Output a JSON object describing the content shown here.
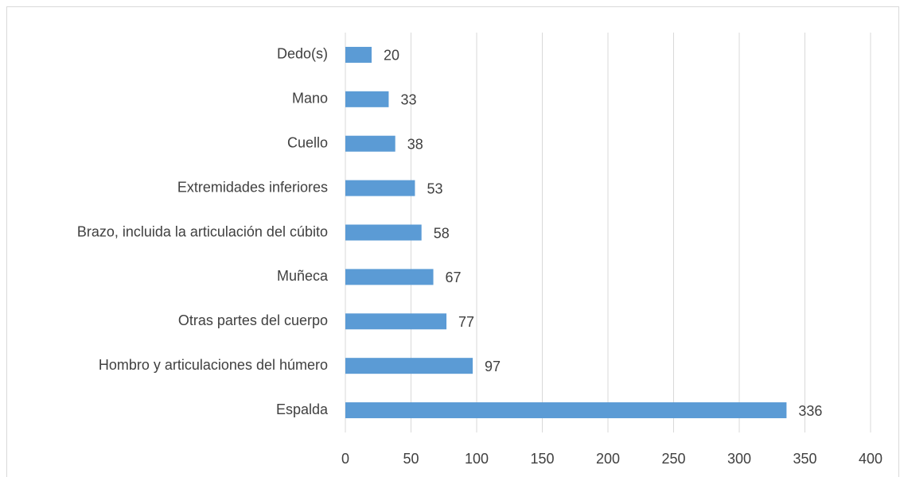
{
  "chart_data": {
    "type": "bar",
    "orientation": "horizontal",
    "categories": [
      "Dedo(s)",
      "Mano",
      "Cuello",
      "Extremidades inferiores",
      "Brazo, incluida la articulación del cúbito",
      "Muñeca",
      "Otras partes del cuerpo",
      "Hombro y articulaciones del húmero",
      "Espalda"
    ],
    "values": [
      20,
      33,
      38,
      53,
      58,
      67,
      77,
      97,
      336
    ],
    "color": "#5b9bd5",
    "xlim": [
      0,
      400
    ],
    "xticks": [
      0,
      50,
      100,
      150,
      200,
      250,
      300,
      350,
      400
    ],
    "grid": true
  }
}
